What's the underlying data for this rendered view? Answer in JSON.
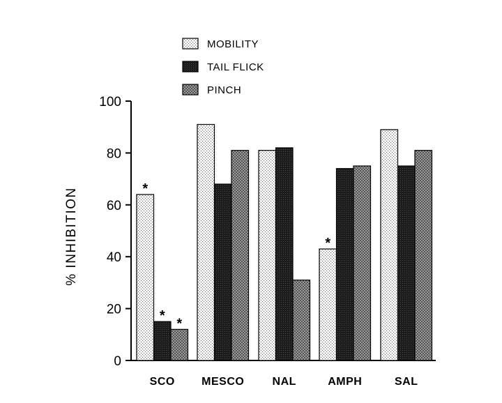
{
  "chart_data": {
    "type": "bar",
    "ylabel": "% INHIBITION",
    "ylim": [
      0,
      100
    ],
    "yticks": [
      "0",
      "20",
      "40",
      "60",
      "80",
      "100"
    ],
    "categories": [
      "SCO",
      "MESCO",
      "NAL",
      "AMPH",
      "SAL"
    ],
    "series": [
      {
        "name": "MOBILITY",
        "pattern": "light-stipple",
        "values": [
          64,
          91,
          81,
          43,
          89
        ]
      },
      {
        "name": "TAIL FLICK",
        "pattern": "dark",
        "values": [
          15,
          68,
          82,
          74,
          75
        ]
      },
      {
        "name": "PINCH",
        "pattern": "medium-crosshatch",
        "values": [
          12,
          81,
          31,
          75,
          81
        ]
      }
    ],
    "annotations": [
      {
        "text": "*",
        "category": "SCO",
        "series": "MOBILITY"
      },
      {
        "text": "*",
        "category": "SCO",
        "series": "TAIL FLICK"
      },
      {
        "text": "*",
        "category": "SCO",
        "series": "PINCH"
      },
      {
        "text": "*",
        "category": "AMPH",
        "series": "MOBILITY"
      }
    ],
    "legend_position": "top-center",
    "grid": false
  }
}
